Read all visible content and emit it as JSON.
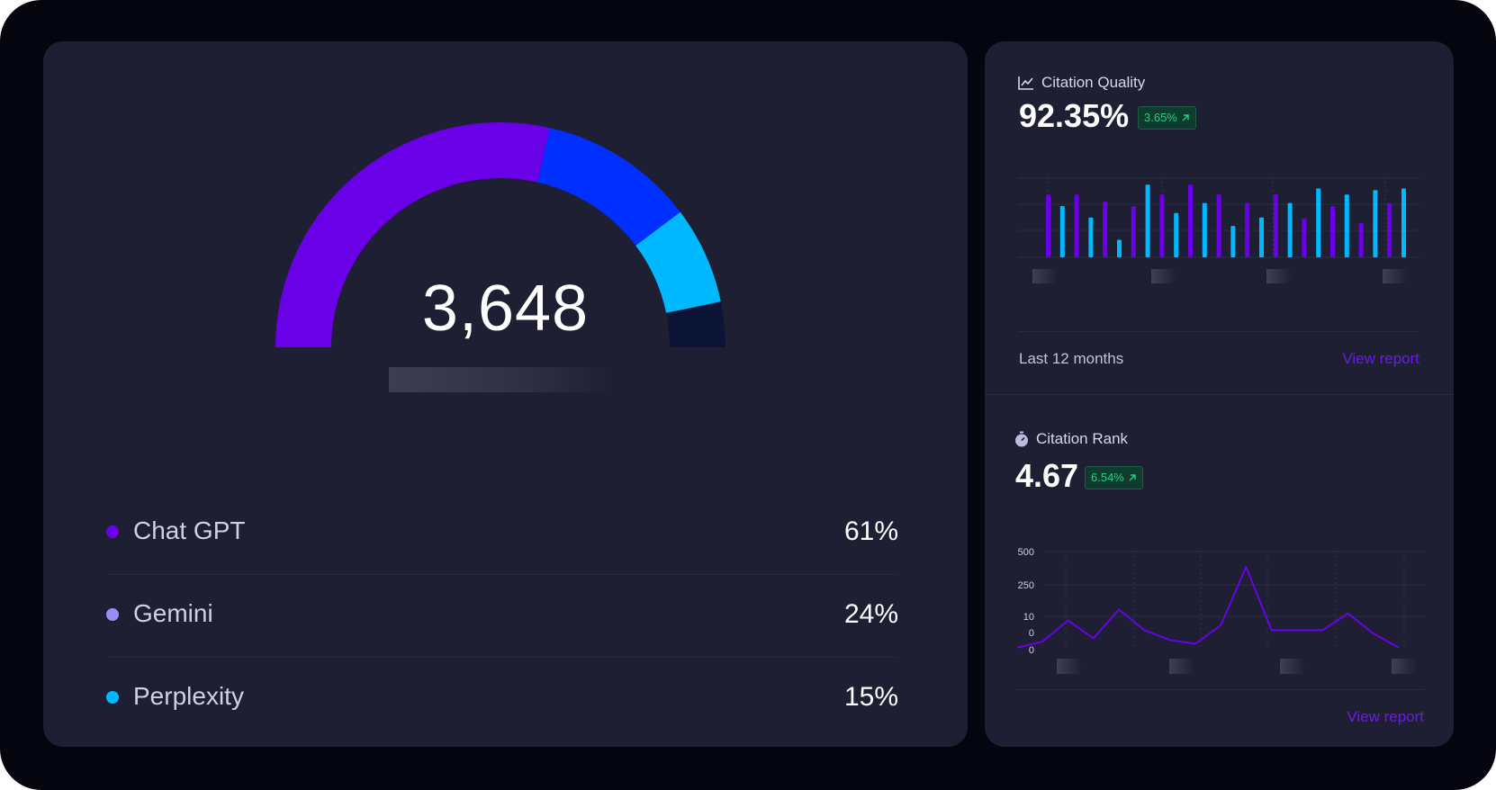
{
  "gauge": {
    "total": "3,648",
    "segments": [
      {
        "name": "Chat GPT",
        "value": 61,
        "color": "#6a00e8"
      },
      {
        "name": "Gemini",
        "value": 24,
        "color": "#0030ff"
      },
      {
        "name": "Perplexity",
        "value": 15,
        "color": "#00b8ff"
      }
    ],
    "track_color": "#0c1535"
  },
  "legend": [
    {
      "label": "Chat GPT",
      "value": "61%",
      "dot_color": "#6a00e8"
    },
    {
      "label": "Gemini",
      "value": "24%",
      "dot_color": "#9e8cf5"
    },
    {
      "label": "Perplexity",
      "value": "15%",
      "dot_color": "#00b8ff"
    }
  ],
  "citation_quality": {
    "title": "Citation Quality",
    "icon": "trend-chart-icon",
    "value": "92.35%",
    "badge": "3.65%",
    "badge_icon": "arrow-up-right-icon",
    "footer_label": "Last 12 months",
    "link": "View report"
  },
  "citation_rank": {
    "title": "Citation Rank",
    "icon": "stopwatch-icon",
    "value": "4.67",
    "badge": "6.54%",
    "badge_icon": "arrow-up-right-icon",
    "link": "View report"
  },
  "chart_data": [
    {
      "type": "bar",
      "title": "",
      "series_colors": [
        "#6a00e8",
        "#00b8ff"
      ],
      "values": [
        0.82,
        0.67,
        0.82,
        0.52,
        0.73,
        0.23,
        0.67,
        0.95,
        0.82,
        0.58,
        0.95,
        0.71,
        0.82,
        0.41,
        0.71,
        0.52,
        0.82,
        0.71,
        0.51,
        0.9,
        0.67,
        0.82,
        0.45,
        0.88,
        0.71,
        0.9
      ],
      "colors_by_index": [
        "#6a00e8",
        "#00b8ff",
        "#6a00e8",
        "#00b8ff",
        "#6a00e8",
        "#00b8ff",
        "#6a00e8",
        "#00b8ff",
        "#6a00e8",
        "#00b8ff",
        "#6a00e8",
        "#00b8ff",
        "#6a00e8",
        "#00b8ff",
        "#6a00e8",
        "#00b8ff",
        "#6a00e8",
        "#00b8ff",
        "#6a00e8",
        "#00b8ff",
        "#6a00e8",
        "#00b8ff",
        "#6a00e8",
        "#00b8ff",
        "#6a00e8",
        "#00b8ff"
      ],
      "ylim": [
        0,
        1
      ],
      "grid": true,
      "xlabel": "",
      "ylabel": ""
    },
    {
      "type": "line",
      "title": "",
      "yticks": [
        "500",
        "250",
        "10",
        "0",
        "0"
      ],
      "values": [
        0.6,
        2.5,
        9,
        3.5,
        12,
        6,
        3,
        1.8,
        7.5,
        23,
        6,
        6,
        6,
        11,
        5,
        0.6
      ],
      "line_color": "#6a00e8",
      "grid": true,
      "xlabel": "",
      "ylabel": ""
    }
  ]
}
